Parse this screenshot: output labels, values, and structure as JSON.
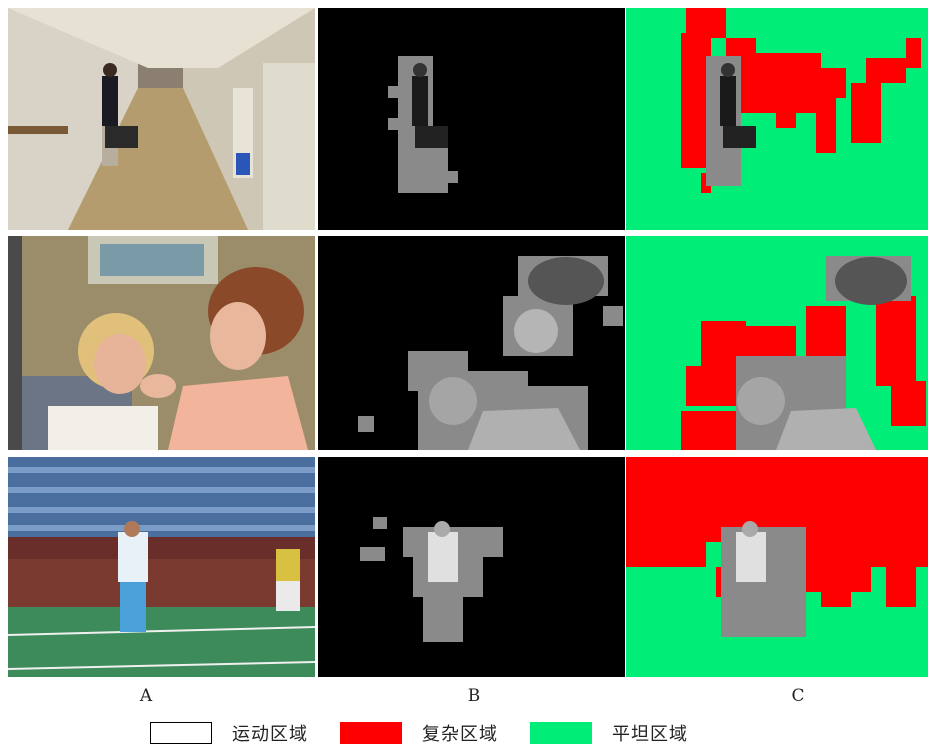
{
  "columns": {
    "a": "A",
    "b": "B",
    "c": "C"
  },
  "legend": [
    {
      "label": "运动区域",
      "color": "#ffffff",
      "border": "#000000"
    },
    {
      "label": "复杂区域",
      "color": "#ff0000",
      "border": "#ff0000"
    },
    {
      "label": "平坦区域",
      "color": "#00ee77",
      "border": "#00ee77"
    }
  ],
  "colors": {
    "motion_bg": "#000000",
    "complex": "#ff0000",
    "flat": "#00ee77"
  },
  "rows": [
    {
      "scene": "hallway"
    },
    {
      "scene": "mother-daughter"
    },
    {
      "scene": "tennis"
    }
  ]
}
